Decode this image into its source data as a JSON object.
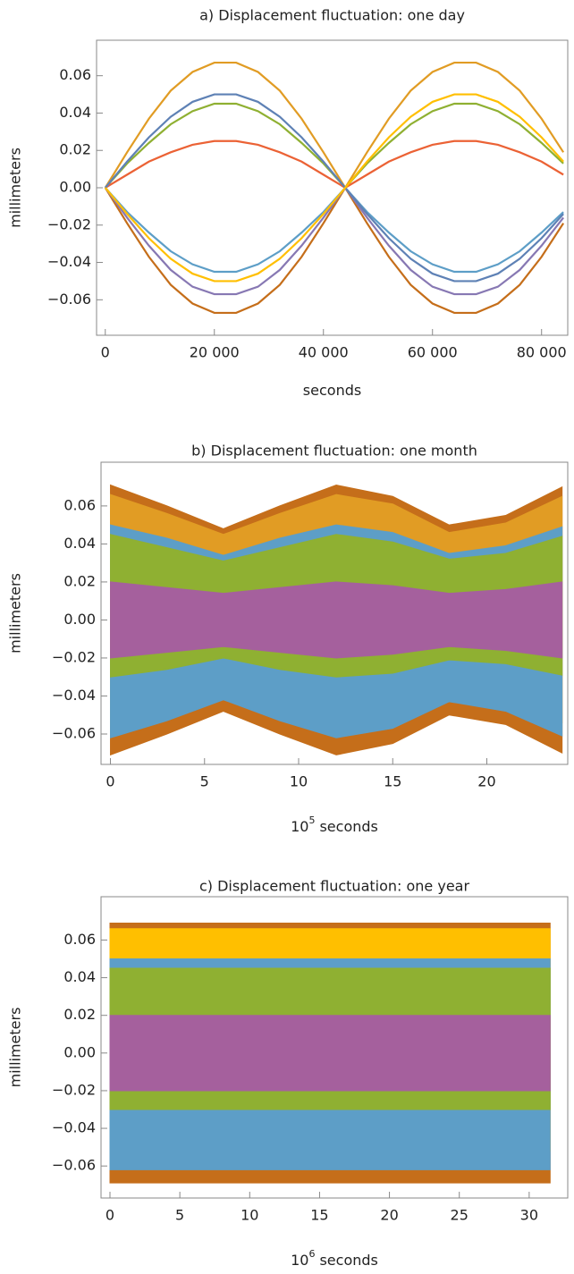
{
  "chart_data": [
    {
      "type": "line",
      "title": "a) Displacement fluctuation: one day",
      "y_label": "millimeters",
      "x_label": "seconds",
      "xlim": [
        -1600,
        84800
      ],
      "ylim": [
        -0.079,
        0.079
      ],
      "xticks": [
        0,
        {
          "value": 20000,
          "label": "20 000"
        },
        {
          "value": 40000,
          "label": "40 000"
        },
        {
          "value": 60000,
          "label": "60 000"
        },
        {
          "value": 80000,
          "label": "80 000"
        }
      ],
      "yticks": [
        {
          "value": -0.06,
          "label": "−0.06"
        },
        {
          "value": -0.04,
          "label": "−0.04"
        },
        {
          "value": -0.02,
          "label": "−0.02"
        },
        {
          "value": 0,
          "label": "0.00"
        },
        {
          "value": 0.02,
          "label": "0.02"
        },
        {
          "value": 0.04,
          "label": "0.04"
        },
        {
          "value": 0.06,
          "label": "0.06"
        }
      ],
      "x": [
        0,
        4000,
        8000,
        12000,
        16000,
        20000,
        24000,
        28000,
        32000,
        36000,
        40000,
        44000,
        48000,
        52000,
        56000,
        60000,
        64000,
        68000,
        72000,
        76000,
        80000,
        84000
      ],
      "series": [
        {
          "color": "#e19c24",
          "values": [
            0,
            0.019,
            0.037,
            0.052,
            0.062,
            0.067,
            0.067,
            0.062,
            0.052,
            0.037,
            0.019,
            0,
            0.019,
            0.037,
            0.052,
            0.062,
            0.067,
            0.067,
            0.062,
            0.052,
            0.037,
            0.019
          ]
        },
        {
          "color": "#c56e1a",
          "values": [
            0,
            -0.019,
            -0.037,
            -0.052,
            -0.062,
            -0.067,
            -0.067,
            -0.062,
            -0.052,
            -0.037,
            -0.019,
            0,
            -0.019,
            -0.037,
            -0.052,
            -0.062,
            -0.067,
            -0.067,
            -0.062,
            -0.052,
            -0.037,
            -0.019
          ]
        },
        {
          "color": "#8fb032",
          "values": [
            0,
            0.013,
            0.024,
            0.034,
            0.041,
            0.045,
            0.045,
            0.041,
            0.034,
            0.024,
            0.013,
            0,
            0.013,
            0.024,
            0.034,
            0.041,
            0.045,
            0.045,
            0.041,
            0.034,
            0.024,
            0.013
          ]
        },
        {
          "color": "#5d9ec7",
          "values": [
            0,
            -0.013,
            -0.024,
            -0.034,
            -0.041,
            -0.045,
            -0.045,
            -0.041,
            -0.034,
            -0.024,
            -0.013,
            0,
            -0.013,
            -0.024,
            -0.034,
            -0.041,
            -0.045,
            -0.045,
            -0.041,
            -0.034,
            -0.024,
            -0.013
          ]
        },
        {
          "color": "#eb6235",
          "values": [
            0,
            0.007,
            0.014,
            0.019,
            0.023,
            0.025,
            0.025,
            0.023,
            0.019,
            0.014,
            0.007,
            0,
            0.007,
            0.014,
            0.019,
            0.023,
            0.025,
            0.025,
            0.023,
            0.019,
            0.014,
            0.007
          ]
        },
        {
          "color": "#8778b3",
          "values": [
            0,
            -0.016,
            -0.031,
            -0.044,
            -0.053,
            -0.057,
            -0.057,
            -0.053,
            -0.044,
            -0.031,
            -0.016,
            0,
            -0.016,
            -0.031,
            -0.044,
            -0.053,
            -0.057,
            -0.057,
            -0.053,
            -0.044,
            -0.031,
            -0.016
          ]
        },
        {
          "color": "#5e81b5",
          "values": [
            0,
            0.014,
            0.027,
            0.038,
            0.046,
            0.05,
            0.05,
            0.046,
            0.038,
            0.027,
            0.014,
            0,
            -0.014,
            -0.027,
            -0.038,
            -0.046,
            -0.05,
            -0.05,
            -0.046,
            -0.038,
            -0.027,
            -0.014
          ]
        },
        {
          "color": "#ffbf00",
          "values": [
            0,
            -0.014,
            -0.027,
            -0.038,
            -0.046,
            -0.05,
            -0.05,
            -0.046,
            -0.038,
            -0.027,
            -0.014,
            0,
            0.014,
            0.027,
            0.038,
            0.046,
            0.05,
            0.05,
            0.046,
            0.038,
            0.027,
            0.014
          ]
        }
      ]
    },
    {
      "type": "range-area",
      "title": "b) Displacement fluctuation: one month",
      "y_label": "millimeters",
      "x_label": "seconds",
      "x_label_scale": {
        "base": "10",
        "exponent": "5"
      },
      "xlim": [
        -0.5,
        24.3
      ],
      "ylim": [
        -0.076,
        0.083
      ],
      "xticks": [
        0,
        5,
        10,
        15,
        20
      ],
      "yticks": [
        {
          "value": -0.06,
          "label": "−0.06"
        },
        {
          "value": -0.04,
          "label": "−0.04"
        },
        {
          "value": -0.02,
          "label": "−0.02"
        },
        {
          "value": 0,
          "label": "0.00"
        },
        {
          "value": 0.02,
          "label": "0.02"
        },
        {
          "value": 0.04,
          "label": "0.04"
        },
        {
          "value": 0.06,
          "label": "0.06"
        }
      ],
      "x": [
        0,
        3,
        6,
        9,
        12,
        15,
        18,
        21,
        24
      ],
      "series": [
        {
          "color": "#c56e1a",
          "high": [
            0.071,
            0.06,
            0.048,
            0.06,
            0.071,
            0.065,
            0.05,
            0.055,
            0.07
          ],
          "low": [
            -0.071,
            -0.06,
            -0.048,
            -0.06,
            -0.071,
            -0.065,
            -0.05,
            -0.055,
            -0.07
          ]
        },
        {
          "color": "#e19c24",
          "high": [
            0.066,
            0.056,
            0.045,
            0.056,
            0.066,
            0.061,
            0.046,
            0.051,
            0.065
          ],
          "low": [
            -0.055,
            -0.047,
            -0.037,
            -0.047,
            -0.055,
            -0.051,
            -0.039,
            -0.043,
            -0.054
          ]
        },
        {
          "color": "#5d9ec7",
          "high": [
            0.05,
            0.043,
            0.034,
            0.043,
            0.05,
            0.046,
            0.035,
            0.039,
            0.049
          ],
          "low": [
            -0.062,
            -0.053,
            -0.042,
            -0.053,
            -0.062,
            -0.057,
            -0.043,
            -0.048,
            -0.061
          ]
        },
        {
          "color": "#8fb032",
          "high": [
            0.045,
            0.038,
            0.031,
            0.038,
            0.045,
            0.041,
            0.032,
            0.035,
            0.044
          ],
          "low": [
            -0.03,
            -0.026,
            -0.02,
            -0.026,
            -0.03,
            -0.028,
            -0.021,
            -0.023,
            -0.029
          ]
        },
        {
          "color": "#a5609d",
          "high": [
            0.02,
            0.017,
            0.014,
            0.017,
            0.02,
            0.018,
            0.014,
            0.016,
            0.02
          ],
          "low": [
            -0.02,
            -0.017,
            -0.014,
            -0.017,
            -0.02,
            -0.018,
            -0.014,
            -0.016,
            -0.02
          ]
        }
      ]
    },
    {
      "type": "range-area",
      "title": "c) Displacement fluctuation: one year",
      "y_label": "millimeters",
      "x_label": "seconds",
      "x_label_scale": {
        "base": "10",
        "exponent": "6"
      },
      "xlim": [
        -0.64,
        32.76
      ],
      "ylim": [
        -0.077,
        0.083
      ],
      "xticks": [
        0,
        5,
        10,
        15,
        20,
        25,
        30
      ],
      "yticks": [
        {
          "value": -0.06,
          "label": "−0.06"
        },
        {
          "value": -0.04,
          "label": "−0.04"
        },
        {
          "value": -0.02,
          "label": "−0.02"
        },
        {
          "value": 0,
          "label": "0.00"
        },
        {
          "value": 0.02,
          "label": "0.02"
        },
        {
          "value": 0.04,
          "label": "0.04"
        },
        {
          "value": 0.06,
          "label": "0.06"
        }
      ],
      "x": [
        0,
        31.5
      ],
      "series": [
        {
          "color": "#c56e1a",
          "high": [
            0.069,
            0.069
          ],
          "low": [
            -0.069,
            -0.069
          ]
        },
        {
          "color": "#ffbf00",
          "high": [
            0.066,
            0.066
          ],
          "low": [
            -0.052,
            -0.052
          ]
        },
        {
          "color": "#5d9ec7",
          "high": [
            0.05,
            0.05
          ],
          "low": [
            -0.062,
            -0.062
          ]
        },
        {
          "color": "#8fb032",
          "high": [
            0.045,
            0.045
          ],
          "low": [
            -0.03,
            -0.03
          ]
        },
        {
          "color": "#a5609d",
          "high": [
            0.02,
            0.02
          ],
          "low": [
            -0.02,
            -0.02
          ]
        }
      ]
    }
  ]
}
